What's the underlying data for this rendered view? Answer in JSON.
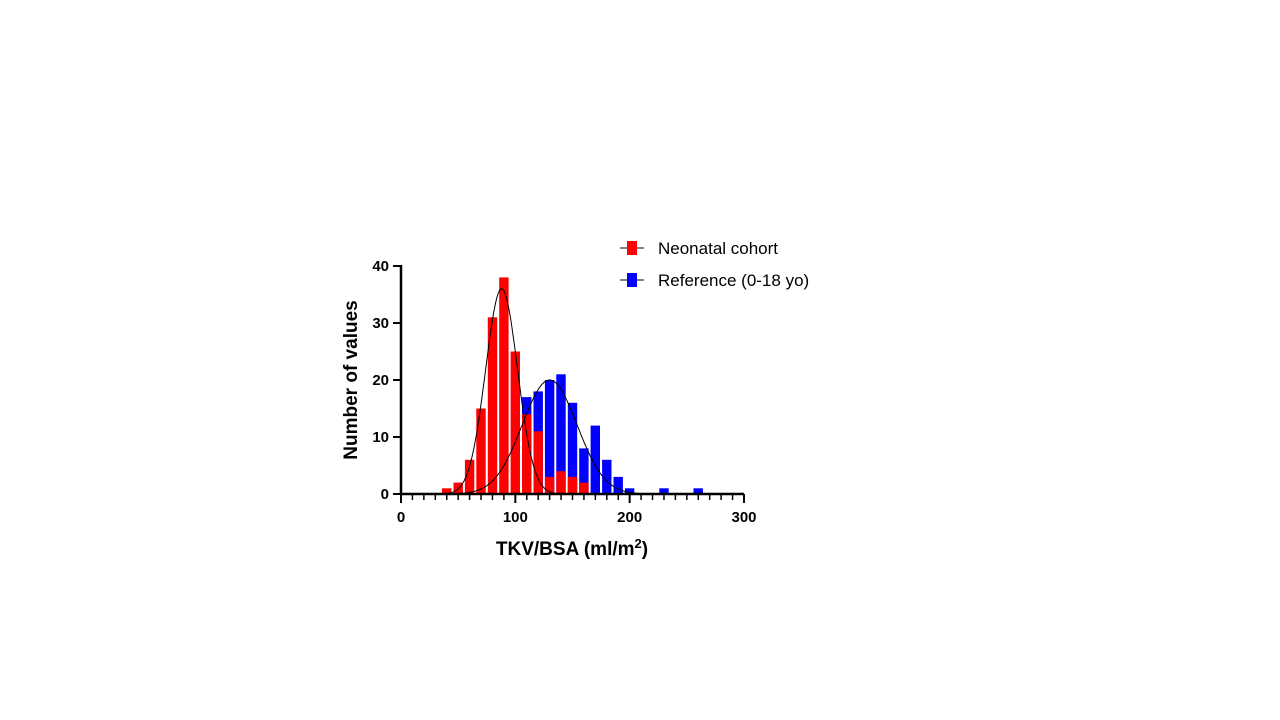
{
  "chart_data": {
    "type": "bar",
    "title": "",
    "xlabel": "TKV/BSA (ml/m",
    "xlabel_superscript": "2",
    "xlabel_suffix": ")",
    "ylabel": "Number of values",
    "xlim": [
      0,
      300
    ],
    "ylim": [
      0,
      40
    ],
    "x_ticks": [
      "0",
      "100",
      "200",
      "300"
    ],
    "y_ticks": [
      "0",
      "10",
      "20",
      "30",
      "40"
    ],
    "bin_width": 10,
    "legend_position": "top-right",
    "grid": false,
    "series": [
      {
        "name": "Neonatal cohort",
        "color": "#ff0000",
        "curve": "gaussian fit",
        "x": [
          40,
          50,
          60,
          70,
          80,
          90,
          100,
          110,
          120,
          130,
          140,
          150,
          160
        ],
        "values": [
          1,
          2,
          6,
          15,
          31,
          38,
          25,
          14,
          11,
          3,
          4,
          3,
          2
        ],
        "fit": {
          "amplitude": 36,
          "mean": 88,
          "sd": 14
        }
      },
      {
        "name": "Reference (0-18 yo)",
        "color": "#0000ff",
        "curve": "gaussian fit",
        "x": [
          110,
          120,
          130,
          140,
          150,
          160,
          170,
          180,
          190,
          200,
          230,
          260
        ],
        "values": [
          17,
          18,
          20,
          21,
          16,
          8,
          12,
          6,
          3,
          1,
          1,
          1
        ],
        "fit": {
          "amplitude": 20,
          "mean": 130,
          "sd": 24
        }
      }
    ]
  }
}
